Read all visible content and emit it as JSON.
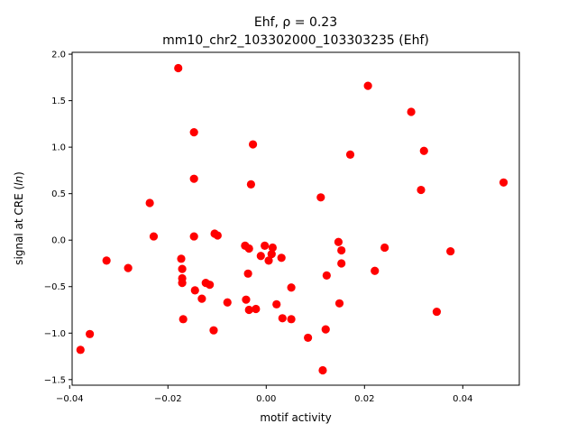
{
  "chart_data": {
    "type": "scatter",
    "title_line1": "Ehf, ρ = 0.23",
    "title_line2": "mm10_chr2_103302000_103303235 (Ehf)",
    "xlabel": "motif activity",
    "ylabel": "signal at CRE (ln)",
    "xlim": [
      -0.0395,
      0.0515
    ],
    "ylim": [
      -1.56,
      2.02
    ],
    "x_ticks": [
      {
        "value": -0.04,
        "label": "−0.04"
      },
      {
        "value": -0.02,
        "label": "−0.02"
      },
      {
        "value": 0.0,
        "label": "0.00"
      },
      {
        "value": 0.02,
        "label": "0.02"
      },
      {
        "value": 0.04,
        "label": "0.04"
      }
    ],
    "y_ticks": [
      {
        "value": -1.5,
        "label": "−1.5"
      },
      {
        "value": -1.0,
        "label": "−1.0"
      },
      {
        "value": -0.5,
        "label": "−0.5"
      },
      {
        "value": 0.0,
        "label": "0.0"
      },
      {
        "value": 0.5,
        "label": "0.5"
      },
      {
        "value": 1.0,
        "label": "1.0"
      },
      {
        "value": 1.5,
        "label": "1.5"
      },
      {
        "value": 2.0,
        "label": "2.0"
      }
    ],
    "grid": false,
    "marker_color": "#ff0000",
    "points": [
      {
        "x": -0.0378,
        "y": -1.18
      },
      {
        "x": -0.0359,
        "y": -1.01
      },
      {
        "x": -0.0325,
        "y": -0.22
      },
      {
        "x": -0.0281,
        "y": -0.3
      },
      {
        "x": -0.0237,
        "y": 0.4
      },
      {
        "x": -0.0229,
        "y": 0.04
      },
      {
        "x": -0.0179,
        "y": 1.85
      },
      {
        "x": -0.0173,
        "y": -0.2
      },
      {
        "x": -0.0171,
        "y": -0.31
      },
      {
        "x": -0.0171,
        "y": -0.41
      },
      {
        "x": -0.0171,
        "y": -0.46
      },
      {
        "x": -0.0169,
        "y": -0.85
      },
      {
        "x": -0.0147,
        "y": 1.16
      },
      {
        "x": -0.0147,
        "y": 0.66
      },
      {
        "x": -0.0147,
        "y": 0.04
      },
      {
        "x": -0.0145,
        "y": -0.54
      },
      {
        "x": -0.0131,
        "y": -0.63
      },
      {
        "x": -0.0123,
        "y": -0.46
      },
      {
        "x": -0.0115,
        "y": -0.48
      },
      {
        "x": -0.0107,
        "y": -0.97
      },
      {
        "x": -0.0105,
        "y": 0.07
      },
      {
        "x": -0.0099,
        "y": 0.05
      },
      {
        "x": -0.0079,
        "y": -0.67
      },
      {
        "x": -0.0043,
        "y": -0.06
      },
      {
        "x": -0.0041,
        "y": -0.64
      },
      {
        "x": -0.0037,
        "y": -0.36
      },
      {
        "x": -0.0035,
        "y": -0.09
      },
      {
        "x": -0.0035,
        "y": -0.75
      },
      {
        "x": -0.0031,
        "y": 0.6
      },
      {
        "x": -0.0027,
        "y": 1.03
      },
      {
        "x": -0.0021,
        "y": -0.74
      },
      {
        "x": -0.0011,
        "y": -0.17
      },
      {
        "x": -0.0003,
        "y": -0.06
      },
      {
        "x": 0.0005,
        "y": -0.22
      },
      {
        "x": 0.0011,
        "y": -0.15
      },
      {
        "x": 0.0013,
        "y": -0.08
      },
      {
        "x": 0.0021,
        "y": -0.69
      },
      {
        "x": 0.0031,
        "y": -0.19
      },
      {
        "x": 0.0033,
        "y": -0.84
      },
      {
        "x": 0.0051,
        "y": -0.51
      },
      {
        "x": 0.0051,
        "y": -0.85
      },
      {
        "x": 0.0085,
        "y": -1.05
      },
      {
        "x": 0.0111,
        "y": 0.46
      },
      {
        "x": 0.0115,
        "y": -1.4
      },
      {
        "x": 0.0121,
        "y": -0.96
      },
      {
        "x": 0.0123,
        "y": -0.38
      },
      {
        "x": 0.0147,
        "y": -0.02
      },
      {
        "x": 0.0149,
        "y": -0.68
      },
      {
        "x": 0.0153,
        "y": -0.11
      },
      {
        "x": 0.0153,
        "y": -0.25
      },
      {
        "x": 0.0171,
        "y": 0.92
      },
      {
        "x": 0.0207,
        "y": 1.66
      },
      {
        "x": 0.0221,
        "y": -0.33
      },
      {
        "x": 0.0241,
        "y": -0.08
      },
      {
        "x": 0.0295,
        "y": 1.38
      },
      {
        "x": 0.0315,
        "y": 0.54
      },
      {
        "x": 0.0321,
        "y": 0.96
      },
      {
        "x": 0.0347,
        "y": -0.77
      },
      {
        "x": 0.0375,
        "y": -0.12
      },
      {
        "x": 0.0483,
        "y": 0.62
      }
    ]
  }
}
